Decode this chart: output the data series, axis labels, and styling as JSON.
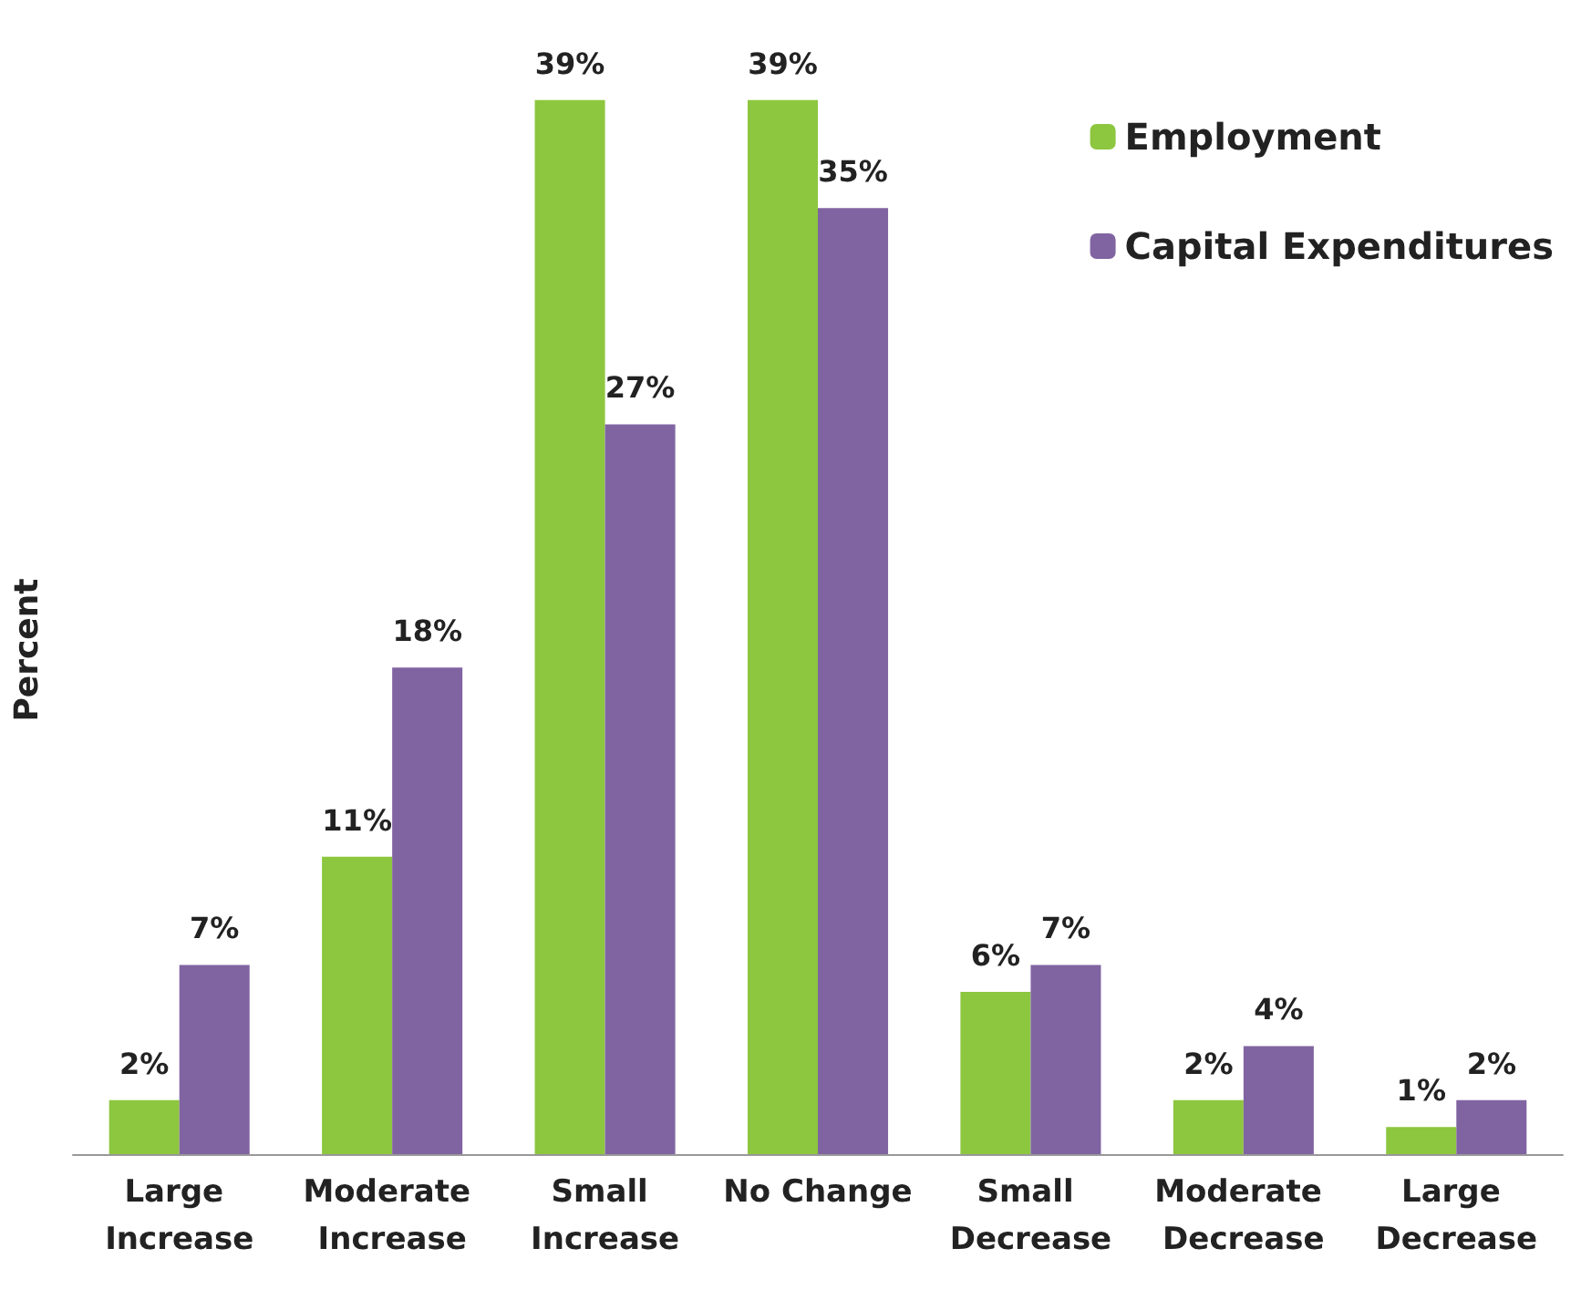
{
  "chart_data": {
    "type": "bar",
    "ylabel": "Percent",
    "legend": "top right",
    "categories": [
      "Large Increase",
      "Moderate Increase",
      "Small Increase",
      "No Change",
      "Small Decrease",
      "Moderate Decrease",
      "Large Decrease"
    ],
    "series": [
      {
        "name": "Employment",
        "color": "#8dc63f",
        "values": [
          2,
          11,
          39,
          39,
          6,
          2,
          1
        ],
        "value_labels": [
          "2%",
          "11%",
          "39%",
          "39%",
          "6%",
          "2%",
          "1%"
        ]
      },
      {
        "name": "Capital Expenditures",
        "color": "#8064a2",
        "values": [
          7,
          18,
          27,
          35,
          7,
          4,
          2
        ],
        "value_labels": [
          "7%",
          "18%",
          "27%",
          "35%",
          "7%",
          "4%",
          "2%"
        ]
      }
    ]
  }
}
